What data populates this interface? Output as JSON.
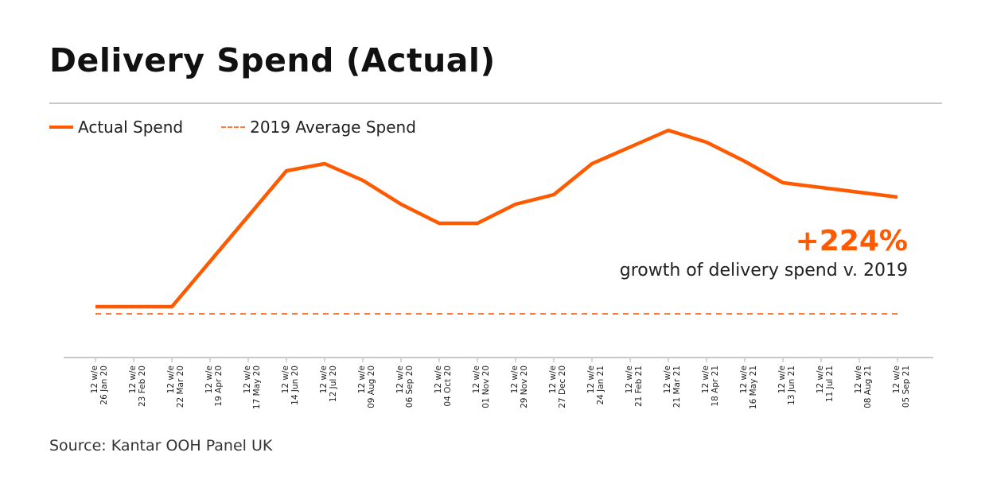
{
  "title": "Delivery Spend (Actual)",
  "legend": {
    "actual_label": "Actual Spend",
    "average_label": "2019 Average Spend"
  },
  "callout": {
    "value": "+224%",
    "text": "growth of delivery spend v. 2019"
  },
  "source": "Source: Kantar OOH Panel UK",
  "colors": {
    "accent": "#ff5a00",
    "average_line": "#ff7a3d",
    "axis": "#c8c8c8"
  },
  "chart_data": {
    "type": "line",
    "title": "Delivery Spend (Actual)",
    "xlabel": "",
    "ylabel": "",
    "ylim": [
      0,
      100
    ],
    "grid": false,
    "legend_position": "top-left",
    "categories": [
      "12 w/e 26 Jan 20",
      "12 w/e 23 Feb 20",
      "12 w/e 22 Mar 20",
      "12 w/e 19 Apr 20",
      "12 w/e 17 May 20",
      "12 w/e 14 Jun 20",
      "12 w/e 12 Jul 20",
      "12 w/e 09 Aug 20",
      "12 w/e 06 Sep 20",
      "12 w/e 04 Oct 20",
      "12 w/e 01 Nov 20",
      "12 w/e 29 Nov 20",
      "12 w/e 27 Dec 20",
      "12 w/e 24 Jan 21",
      "12 w/e 21 Feb 21",
      "12 w/e 21 Mar 21",
      "12 w/e 18 Apr 21",
      "12 w/e 16 May 21",
      "12 w/e 13 Jun 21",
      "12 w/e 11 Jul 21",
      "12 w/e 08 Aug 21",
      "12 w/e 05 Sep 21"
    ],
    "tick_labels": [
      [
        "12 w/e",
        "26 Jan 20"
      ],
      [
        "12 w/e",
        "23 Feb 20"
      ],
      [
        "12 w/e",
        "22 Mar 20"
      ],
      [
        "12 w/e",
        "19 Apr 20"
      ],
      [
        "12 w/e",
        "17 May 20"
      ],
      [
        "12 w/e",
        "14 Jun 20"
      ],
      [
        "12 w/e",
        "12 Jul 20"
      ],
      [
        "12 w/e",
        "09 Aug 20"
      ],
      [
        "12 w/e",
        "06 Sep 20"
      ],
      [
        "12 w/e",
        "04 Oct 20"
      ],
      [
        "12 w/e",
        "01 Nov 20"
      ],
      [
        "12 w/e",
        "29 Nov 20"
      ],
      [
        "12 w/e",
        "27 Dec 20"
      ],
      [
        "12 w/e",
        "24 Jan 21"
      ],
      [
        "12 w/e",
        "21 Feb 21"
      ],
      [
        "12 w/e",
        "21 Mar 21"
      ],
      [
        "12 w/e",
        "18 Apr 21"
      ],
      [
        "12 w/e",
        "16 May 21"
      ],
      [
        "12 w/e",
        "13 Jun 21"
      ],
      [
        "12 w/e",
        "11 Jul 21"
      ],
      [
        "12 w/e",
        "08 Aug 21"
      ],
      [
        "12 w/e",
        "05 Sep 21"
      ]
    ],
    "series": [
      {
        "name": "Actual Spend",
        "style": "solid",
        "color": "#ff5a00",
        "values": [
          21,
          21,
          21,
          40,
          59,
          78,
          81,
          74,
          64,
          56,
          56,
          64,
          68,
          81,
          88,
          95,
          90,
          82,
          73,
          71,
          69,
          67
        ]
      },
      {
        "name": "2019 Average Spend",
        "style": "dashed",
        "color": "#ff7a3d",
        "values": [
          18,
          18,
          18,
          18,
          18,
          18,
          18,
          18,
          18,
          18,
          18,
          18,
          18,
          18,
          18,
          18,
          18,
          18,
          18,
          18,
          18,
          18
        ]
      }
    ]
  }
}
